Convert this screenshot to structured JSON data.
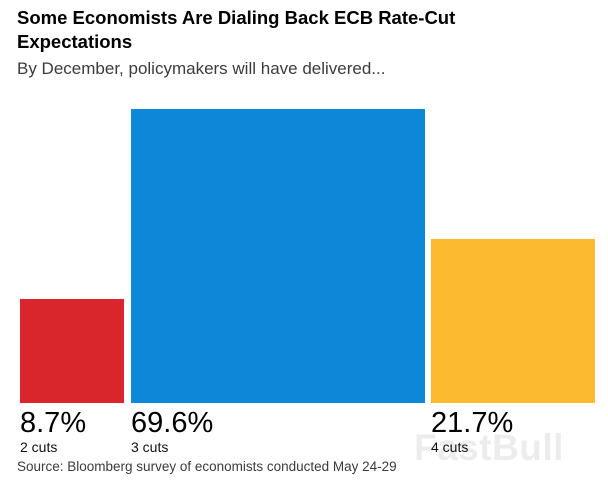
{
  "header": {
    "title": "Some Economists Are Dialing Back ECB Rate-Cut Expectations",
    "subtitle": "By December, policymakers will have delivered..."
  },
  "chart_data": {
    "type": "bar",
    "variant": "area_proportional_squares",
    "categories": [
      "2 cuts",
      "3 cuts",
      "4 cuts"
    ],
    "values": [
      8.7,
      69.6,
      21.7
    ],
    "value_labels": [
      "8.7%",
      "69.6%",
      "21.7%"
    ],
    "bar_colors": [
      "#d8262c",
      "#0d87d8",
      "#fcba30"
    ],
    "title": "Some Economists Are Dialing Back ECB Rate-Cut Expectations",
    "subtitle": "By December, policymakers will have delivered...",
    "unit": "%",
    "xlabel": "",
    "ylabel": "",
    "legend": "none",
    "grid": false,
    "axes_visible": false
  },
  "footer": {
    "source": "Source: Bloomberg survey of economists conducted May 24-29"
  },
  "watermark": {
    "text": "FastBull"
  }
}
